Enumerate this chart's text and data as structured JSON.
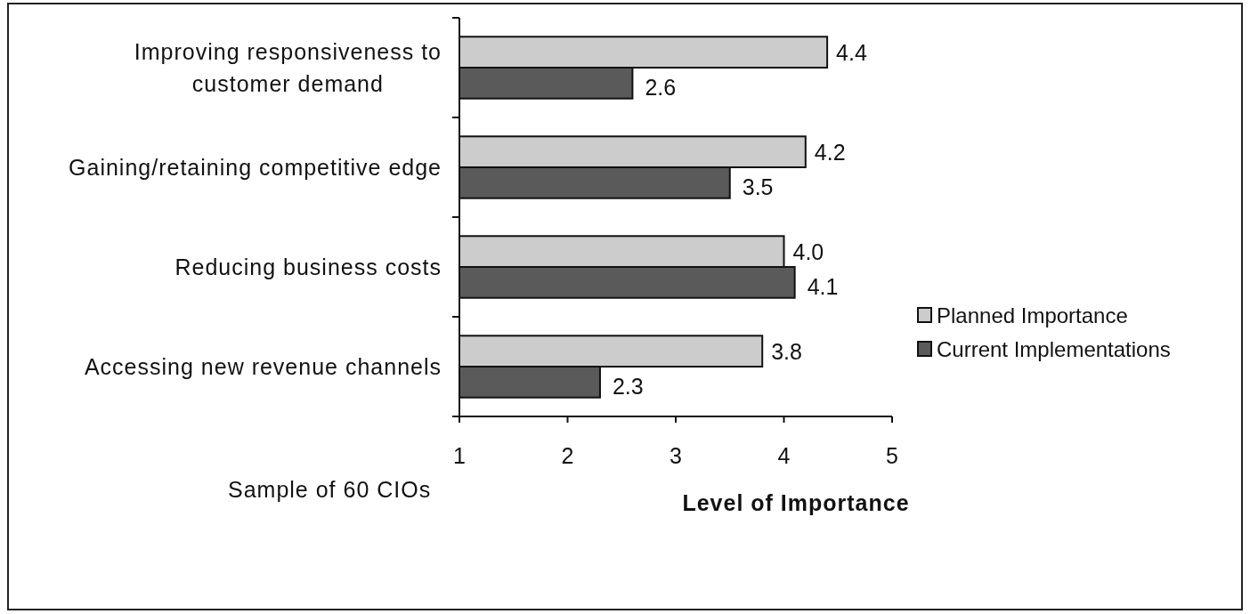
{
  "chart_data": {
    "type": "bar",
    "orientation": "horizontal",
    "categories": [
      "Improving responsiveness to customer demand",
      "Gaining/retaining competitive edge",
      "Reducing business costs",
      "Accessing new revenue channels"
    ],
    "series": [
      {
        "name": "Planned Importance",
        "color": "#cccccc",
        "values": [
          4.4,
          4.2,
          4.0,
          3.8
        ],
        "value_labels": [
          "4.4",
          "4.2",
          "4.0",
          "3.8"
        ]
      },
      {
        "name": "Current Implementations",
        "color": "#5a5a5a",
        "values": [
          2.6,
          3.5,
          4.1,
          2.3
        ],
        "value_labels": [
          "2.6",
          "3.5",
          "4.1",
          "2.3"
        ]
      }
    ],
    "xlim": [
      1,
      5
    ],
    "xticks": [
      1,
      2,
      3,
      4,
      5
    ],
    "xlabel": "Level of Importance",
    "annotations": [
      "Sample of 60 CIOs"
    ],
    "legend": "right",
    "grid": false
  }
}
